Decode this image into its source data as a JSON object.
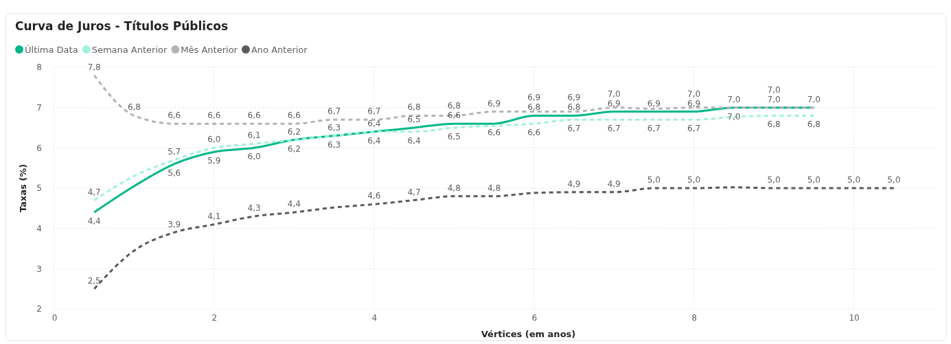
{
  "chart_data": {
    "type": "line",
    "title": "Curva de Juros - Títulos Públicos",
    "xlabel": "Vértices (em anos)",
    "ylabel": "Taxas (%)",
    "xlim": [
      0,
      11
    ],
    "xticks": [
      0,
      2,
      4,
      6,
      8,
      10
    ],
    "ylim": [
      2,
      8
    ],
    "yticks": [
      2,
      3,
      4,
      5,
      6,
      7,
      8
    ],
    "grid": true,
    "legend": "top left",
    "marker": "none",
    "series": [
      {
        "name": "Última Data",
        "color": "#01b88a",
        "line_style": "solid",
        "x": [
          0.5,
          1,
          1.5,
          2,
          2.5,
          3,
          3.5,
          4,
          4.5,
          5,
          5.5,
          6,
          6.5,
          7,
          7.5,
          8,
          8.5,
          9,
          9.5
        ],
        "values": [
          4.4,
          5.05,
          5.6,
          5.9,
          6.0,
          6.2,
          6.3,
          6.4,
          6.5,
          6.6,
          6.6,
          6.8,
          6.8,
          6.9,
          6.9,
          6.9,
          7.0,
          7.0,
          7.0
        ],
        "value_labels": [
          "4,4",
          null,
          "5,6",
          "5,9",
          "6,0",
          "6,2",
          "6,3",
          "6,4",
          "6,5",
          "6,6",
          "6,6",
          "6,8",
          "6,8",
          "6,9",
          "6,9",
          "6,9",
          "7,0",
          "7,0",
          "7,0"
        ]
      },
      {
        "name": "Semana Anterior",
        "color": "#9ff2dc",
        "line_style": "dashed",
        "x": [
          0.5,
          1,
          1.5,
          2,
          2.5,
          3,
          3.5,
          4,
          4.5,
          5,
          5.5,
          6,
          6.5,
          7,
          7.5,
          8,
          8.5,
          9,
          9.5
        ],
        "values": [
          4.7,
          5.3,
          5.7,
          6.0,
          6.1,
          6.2,
          6.3,
          6.4,
          6.4,
          6.5,
          6.55,
          6.6,
          6.7,
          6.7,
          6.7,
          6.7,
          6.77,
          6.8,
          6.8
        ],
        "value_labels": [
          "4,7",
          null,
          "5,7",
          "6,0",
          "6,1",
          "6,2",
          "6,3",
          "6,4",
          "6,4",
          "6,5",
          null,
          "6,6",
          "6,7",
          "6,7",
          "6,7",
          "6,7",
          null,
          "6,8",
          "6,8"
        ]
      },
      {
        "name": "Mês Anterior",
        "color": "#b4b4b4",
        "line_style": "dashed",
        "x": [
          0.5,
          1,
          1.5,
          2,
          2.5,
          3,
          3.5,
          4,
          4.5,
          5,
          5.5,
          6,
          6.5,
          7,
          7.5,
          8,
          8.5,
          9,
          9.5
        ],
        "values": [
          7.8,
          6.8,
          6.6,
          6.6,
          6.6,
          6.6,
          6.7,
          6.7,
          6.8,
          6.8,
          6.9,
          6.9,
          6.9,
          7.0,
          6.97,
          7.0,
          7.0,
          7.0,
          7.0
        ],
        "value_labels": [
          "7,8",
          "6,8",
          "6,6",
          "6,6",
          "6,6",
          "6,6",
          "6,7",
          "6,7",
          "6,8",
          "6,8",
          "6,9",
          "6,9",
          "6,9",
          "7,0",
          null,
          "7,0",
          "7,0",
          "7,0",
          null
        ]
      },
      {
        "name": "Ano Anterior",
        "color": "#5a5a5a",
        "line_style": "dashed",
        "x": [
          0.5,
          1,
          1.5,
          2,
          2.5,
          3,
          3.5,
          4,
          4.5,
          5,
          5.5,
          6,
          6.5,
          7,
          7.5,
          8,
          8.5,
          9,
          9.5,
          10,
          10.5
        ],
        "values": [
          2.5,
          3.45,
          3.9,
          4.1,
          4.3,
          4.4,
          4.52,
          4.6,
          4.7,
          4.8,
          4.8,
          4.88,
          4.9,
          4.9,
          5.0,
          5.0,
          5.02,
          5.0,
          5.0,
          5.0,
          5.0
        ],
        "value_labels": [
          "2,5",
          null,
          "3,9",
          "4,1",
          "4,3",
          "4,4",
          null,
          "4,6",
          "4,7",
          "4,8",
          "4,8",
          null,
          "4,9",
          "4,9",
          "5,0",
          "5,0",
          null,
          "5,0",
          "5,0",
          "5,0",
          "5,0"
        ]
      }
    ]
  }
}
